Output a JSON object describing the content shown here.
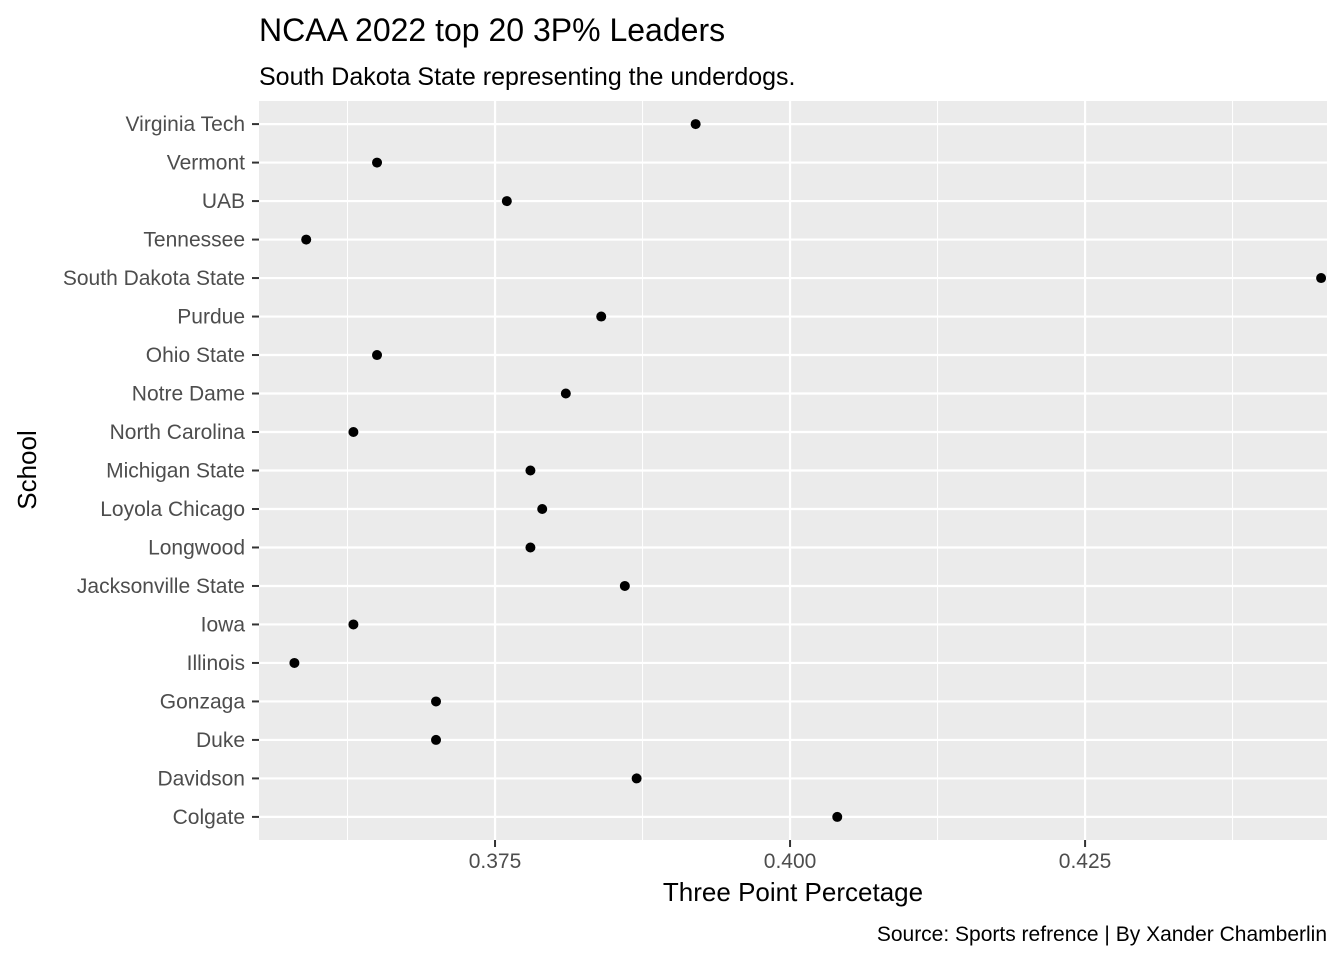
{
  "chart_data": {
    "type": "scatter",
    "title": "NCAA 2022 top 20 3P% Leaders",
    "subtitle": "South Dakota State representing the underdogs.",
    "caption": "Source: Sports refrence | By Xander Chamberlin",
    "xlabel": "Three Point Percetage",
    "ylabel": "School",
    "xlim": [
      0.355,
      0.4455
    ],
    "x_ticks": [
      0.375,
      0.4,
      0.425
    ],
    "x_tick_labels": [
      "0.375",
      "0.400",
      "0.425"
    ],
    "grid": true,
    "colors": {
      "panel_background": "#ebebeb",
      "grid": "#ffffff",
      "point": "#000000",
      "tick_label": "#4d4d4d",
      "tick_mark": "#333333"
    },
    "categories": [
      "Colgate",
      "Davidson",
      "Duke",
      "Gonzaga",
      "Illinois",
      "Iowa",
      "Jacksonville State",
      "Longwood",
      "Loyola Chicago",
      "Michigan State",
      "North Carolina",
      "Notre Dame",
      "Ohio State",
      "Purdue",
      "South Dakota State",
      "Tennessee",
      "UAB",
      "Vermont",
      "Virginia Tech"
    ],
    "values": [
      0.404,
      0.387,
      0.37,
      0.37,
      0.358,
      0.363,
      0.386,
      0.378,
      0.379,
      0.378,
      0.363,
      0.381,
      0.365,
      0.384,
      0.445,
      0.359,
      0.376,
      0.365,
      0.392
    ]
  }
}
